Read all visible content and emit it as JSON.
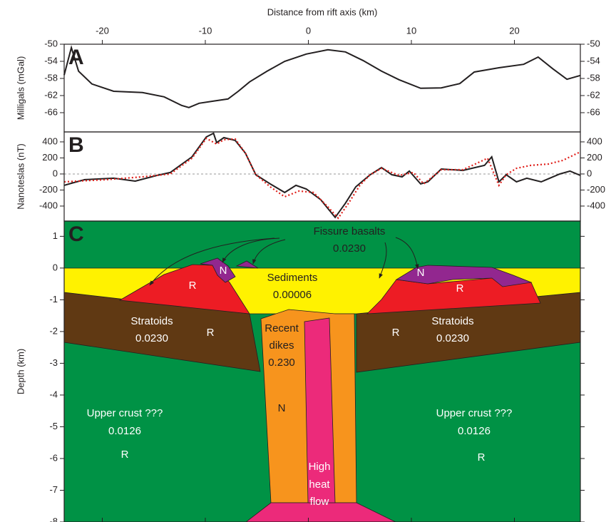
{
  "chart_data": [
    {
      "type": "line",
      "panel": "A",
      "xlabel": "Distance from rift axis (km)",
      "ylabel": "Milligals (mGal)",
      "xlim": [
        -23.7,
        26.4
      ],
      "xticks": [
        -20,
        -10,
        0,
        10,
        20
      ],
      "ylim": [
        -70.5,
        -50
      ],
      "yticks": [
        -50,
        -54,
        -58,
        -62,
        -66
      ],
      "color": "#231f20",
      "x": [
        -23.7,
        -23.0,
        -22.3,
        -21.0,
        -18.9,
        -16.1,
        -14.0,
        -12.3,
        -11.6,
        -10.6,
        -9.2,
        -7.8,
        -6.8,
        -5.7,
        -4.0,
        -2.3,
        -0.2,
        1.9,
        3.6,
        5.3,
        7.1,
        8.8,
        10.9,
        12.9,
        14.7,
        16.1,
        18.5,
        20.9,
        22.3,
        23.7,
        25.1,
        26.4
      ],
      "values": [
        -57.2,
        -50.8,
        -56.3,
        -59.3,
        -61.0,
        -61.3,
        -62.3,
        -64.3,
        -64.8,
        -63.8,
        -63.3,
        -62.8,
        -61.0,
        -58.8,
        -56.3,
        -54.0,
        -52.3,
        -51.3,
        -51.8,
        -53.8,
        -56.3,
        -58.3,
        -60.3,
        -60.2,
        -59.2,
        -56.5,
        -55.5,
        -54.7,
        -53.0,
        -55.7,
        -58.2,
        -57.3
      ]
    },
    {
      "type": "line",
      "panel": "B",
      "ylabel": "Nanoteslas (nT)",
      "xlim": [
        -23.7,
        26.4
      ],
      "ylim": [
        -587,
        524
      ],
      "yticks": [
        400,
        200,
        0,
        -200,
        -400
      ],
      "zero_line": true,
      "series": [
        {
          "color": "#231f20",
          "style": "solid",
          "x": [
            -23.7,
            -23.0,
            -21.7,
            -18.9,
            -16.8,
            -14.7,
            -13.4,
            -11.3,
            -9.9,
            -9.2,
            -8.9,
            -8.2,
            -7.1,
            -6.1,
            -5.1,
            -3.7,
            -2.3,
            -1.2,
            -0.2,
            1.2,
            2.6,
            3.6,
            4.6,
            6.0,
            7.1,
            8.1,
            9.1,
            9.8,
            10.9,
            11.6,
            12.9,
            15.0,
            17.1,
            17.8,
            18.5,
            19.2,
            20.2,
            21.2,
            22.6,
            24.4,
            25.4,
            26.4
          ],
          "values": [
            -142,
            -116,
            -71,
            -53,
            -89,
            -18,
            18,
            213,
            462,
            507,
            391,
            453,
            418,
            258,
            -9,
            -124,
            -231,
            -142,
            -187,
            -320,
            -542,
            -364,
            -160,
            -9,
            80,
            -9,
            -36,
            36,
            -124,
            -98,
            62,
            44,
            107,
            213,
            -98,
            -9,
            -98,
            -53,
            -98,
            0,
            36,
            -18
          ]
        },
        {
          "color": "#e0201b",
          "style": "dotted",
          "x": [
            -23.7,
            -19.6,
            -16.1,
            -13.4,
            -11.3,
            -9.9,
            -8.9,
            -8.2,
            -7.1,
            -6.1,
            -5.1,
            -3.7,
            -2.3,
            -0.9,
            0.5,
            1.9,
            2.9,
            3.9,
            5.0,
            6.0,
            7.1,
            8.8,
            10.2,
            11.2,
            12.9,
            15.0,
            17.4,
            18.5,
            19.2,
            20.2,
            21.6,
            23.3,
            24.7,
            26.4
          ],
          "values": [
            -98,
            -71,
            -36,
            0,
            196,
            444,
            373,
            427,
            436,
            258,
            -9,
            -160,
            -284,
            -213,
            -231,
            -409,
            -551,
            -364,
            -142,
            -9,
            71,
            -18,
            18,
            -124,
            53,
            53,
            196,
            -142,
            -9,
            71,
            107,
            124,
            169,
            276
          ]
        }
      ]
    },
    {
      "type": "section",
      "panel": "C",
      "ylabel": "Depth (km)",
      "xlim": [
        -23.7,
        26.4
      ],
      "ylim": [
        -8,
        1.48
      ],
      "yticks": [
        1,
        0,
        -1,
        -2,
        -3,
        -4,
        -5,
        -6,
        -7,
        -8
      ],
      "labels": [
        "Fissure basalts",
        "0.0230",
        "Sediments",
        "0.00006",
        "Stratoids",
        "0.0230",
        "R",
        "Recent",
        "dikes",
        "0.230",
        "Stratoids",
        "0.0230",
        "R",
        "Upper crust ???",
        "0.0126",
        "R",
        "Upper crust ???",
        "0.0126",
        "R",
        "N",
        "High",
        "heat",
        "flow",
        "N",
        "R",
        "N",
        "R"
      ]
    }
  ]
}
